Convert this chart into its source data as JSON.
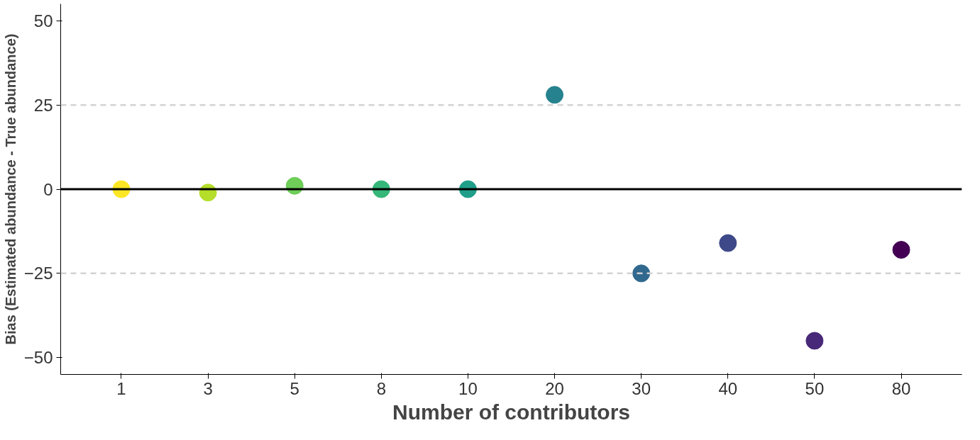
{
  "chart_data": {
    "type": "scatter",
    "xlabel": "Number of contributors",
    "ylabel": "Bias (Estimated abundance - True abundance)",
    "categories": [
      "1",
      "3",
      "5",
      "8",
      "10",
      "20",
      "30",
      "40",
      "50",
      "80"
    ],
    "values": [
      0,
      -1,
      1,
      0,
      0,
      28,
      -25,
      -16,
      -45,
      -18
    ],
    "colors": [
      "#fde725",
      "#b5de2b",
      "#6ece58",
      "#35b779",
      "#1f9e89",
      "#26828e",
      "#31688e",
      "#3e4989",
      "#482878",
      "#440154"
    ],
    "marker": "circle",
    "ylim": [
      -55,
      55
    ],
    "yticks": [
      -50,
      -25,
      0,
      25,
      50
    ],
    "grid": false,
    "ref_lines": [
      {
        "axis": "y",
        "value": 0,
        "color": "#000000",
        "line_style": "solid"
      },
      {
        "axis": "y",
        "value": 25,
        "color": "#d3d3d3",
        "line_style": "dashed"
      },
      {
        "axis": "y",
        "value": -25,
        "color": "#d3d3d3",
        "line_style": "dashed"
      }
    ]
  }
}
